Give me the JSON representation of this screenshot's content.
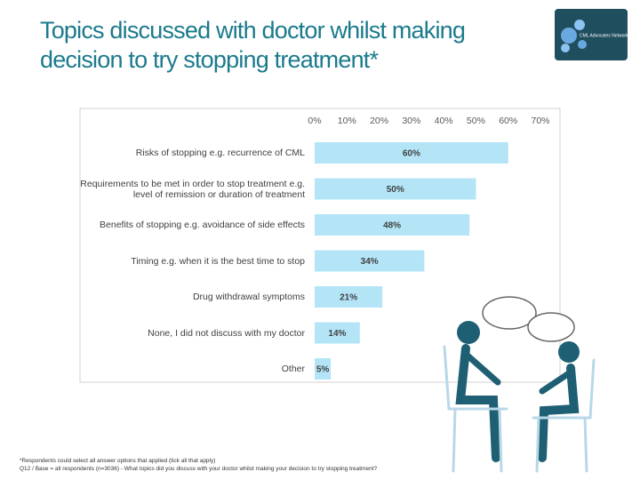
{
  "header": {
    "title": "Topics discussed with doctor whilst making decision to try stopping treatment*",
    "logo": "CML Advocates Network"
  },
  "chart_data": {
    "type": "bar",
    "orientation": "horizontal",
    "categories": [
      "Risks of stopping e.g. recurrence of CML",
      "Requirements to be met in order to stop treatment e.g. level of remission or duration of treatment",
      "Benefits of stopping e.g. avoidance of side effects",
      "Timing e.g. when it is the best time to stop",
      "Drug withdrawal symptoms",
      "None, I did not discuss with my doctor",
      "Other"
    ],
    "values": [
      60,
      50,
      48,
      34,
      21,
      14,
      5
    ],
    "value_labels": [
      "60%",
      "50%",
      "48%",
      "34%",
      "21%",
      "14%",
      "5%"
    ],
    "color": "#b3e5f7",
    "xlim": [
      0,
      70
    ],
    "xticks": [
      {
        "value": 0,
        "label": "0%"
      },
      {
        "value": 10,
        "label": "10%"
      },
      {
        "value": 20,
        "label": "20%"
      },
      {
        "value": 30,
        "label": "30%"
      },
      {
        "value": 40,
        "label": "40%"
      },
      {
        "value": 50,
        "label": "50%"
      },
      {
        "value": 60,
        "label": "60%"
      },
      {
        "value": 70,
        "label": "70%"
      }
    ],
    "grid": false
  },
  "footnotes": [
    "*Respondents could select all answer options that applied (tick all that apply)",
    "Q12 / Base = all respondents (n=3036) - What topics did you discuss with your doctor whilst making your decision to try stopping treatment?"
  ]
}
